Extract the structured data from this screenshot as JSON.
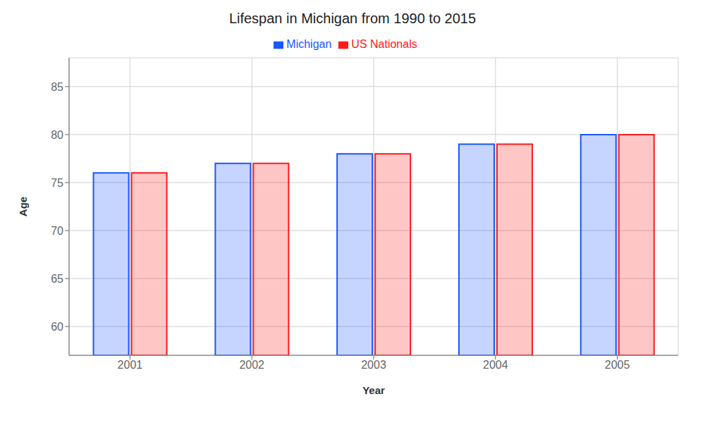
{
  "chart_data": {
    "type": "bar",
    "title": "Lifespan in Michigan from 1990 to 2015",
    "xlabel": "Year",
    "ylabel": "Age",
    "categories": [
      "2001",
      "2002",
      "2003",
      "2004",
      "2005"
    ],
    "series": [
      {
        "name": "Michigan",
        "color": "#1a56ff",
        "values": [
          76.0,
          77.0,
          78.0,
          79.0,
          80.0
        ]
      },
      {
        "name": "US Nationals",
        "color": "#ff1a1a",
        "values": [
          76.0,
          77.0,
          78.0,
          79.0,
          80.0
        ]
      }
    ],
    "ylim": [
      57,
      88
    ],
    "yticks": [
      60,
      65,
      70,
      75,
      80,
      85
    ],
    "grid": true,
    "legend": "top"
  }
}
